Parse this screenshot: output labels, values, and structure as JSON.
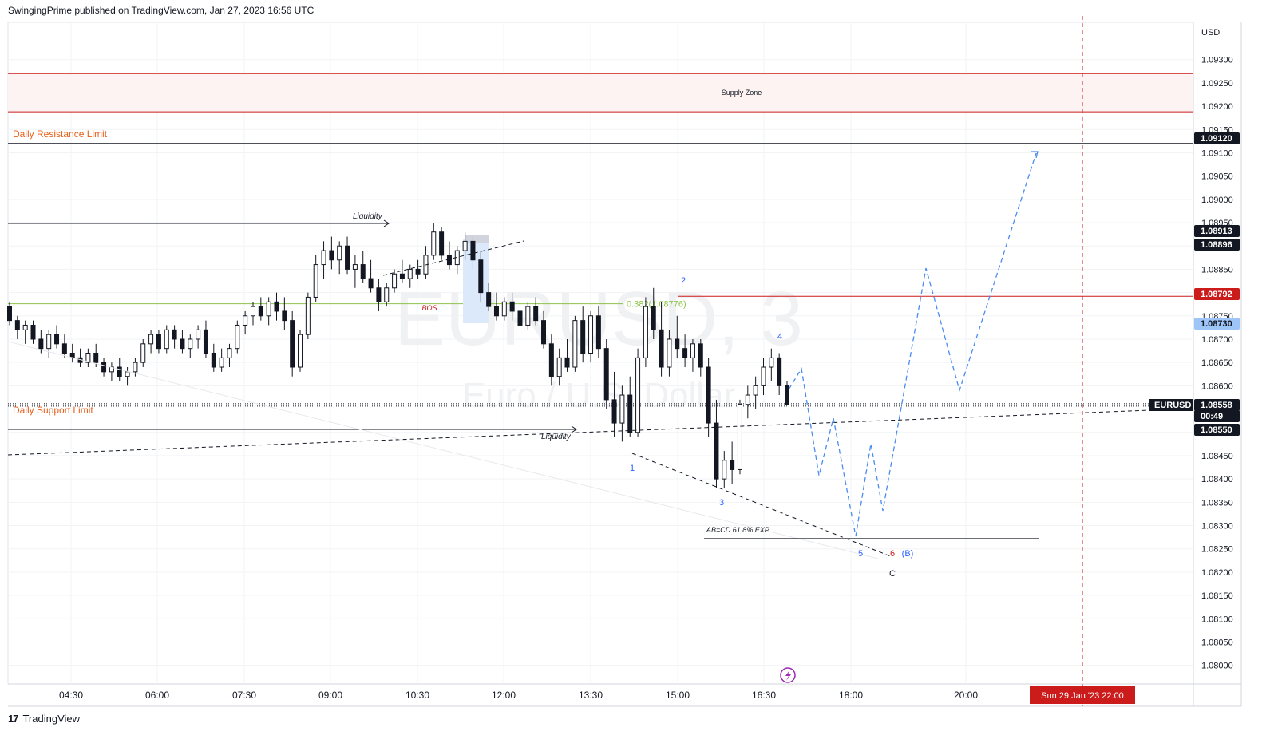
{
  "header": {
    "published": "SwingingPrime published on TradingView.com, Jan 27, 2023 16:56 UTC"
  },
  "footer": {
    "logo": "17",
    "brand": "TradingView"
  },
  "watermark": {
    "symbol": "EURUSD, 3",
    "name": "Euro / U.S. Dollar"
  },
  "colors": {
    "resistance": "#cc1b1b",
    "support_label": "#e8601c",
    "fib": "#8bc34a",
    "projection": "#4a8cf0",
    "candle": "#131722",
    "bos": "#cc1b1b",
    "price_tag": "#131722",
    "blue_tag": "#9ec5f8"
  },
  "chart_data": {
    "type": "candlestick",
    "symbol": "EURUSD",
    "currency": "USD",
    "ylim": [
      1.0796,
      1.0938
    ],
    "y_ticks": [
      "1.09300",
      "1.09250",
      "1.09200",
      "1.09150",
      "1.09100",
      "1.09050",
      "1.09000",
      "1.08950",
      "1.08900",
      "1.08850",
      "1.08800",
      "1.08750",
      "1.08700",
      "1.08650",
      "1.08600",
      "1.08550",
      "1.08500",
      "1.08450",
      "1.08400",
      "1.08350",
      "1.08300",
      "1.08250",
      "1.08200",
      "1.08150",
      "1.08100",
      "1.08050",
      "1.08000"
    ],
    "x_ticks": [
      "04:30",
      "06:00",
      "07:30",
      "09:00",
      "10:30",
      "12:00",
      "13:30",
      "15:00",
      "16:30",
      "18:00",
      "20:00"
    ],
    "price_tags": [
      {
        "value": "1.09120",
        "style": "dark"
      },
      {
        "value": "1.08913",
        "style": "dark"
      },
      {
        "value": "1.08896",
        "style": "dark"
      },
      {
        "value": "1.08792",
        "style": "red"
      },
      {
        "value": "1.08730",
        "style": "blue"
      },
      {
        "value": "1.08558",
        "style": "dark"
      },
      {
        "value": "00:49",
        "style": "dark"
      },
      {
        "value": "1.08550",
        "style": "dark"
      }
    ],
    "symbol_tag": "EURUSD",
    "date_tag": "Sun 29 Jan '23   22:00",
    "supply_zone": {
      "label": "Supply Zone",
      "top": 1.0927,
      "bottom": 1.09188
    },
    "levels": [
      {
        "label": "Daily Resistance Limit",
        "value": 1.0912
      },
      {
        "label": "Daily Support Limit",
        "value": 1.08558
      },
      {
        "label": "",
        "value": 1.08792
      }
    ],
    "fib": {
      "label": "0.382(1.08776)",
      "value": 1.08776
    },
    "bos_label": "BOS",
    "liquidity_labels": [
      "Liquidity",
      "Liquidity"
    ],
    "abcd": {
      "label": "AB=CD 61.8% EXP",
      "value": 1.08272
    },
    "wave_labels": [
      "1",
      "2",
      "3",
      "4",
      "5",
      "6",
      "(B)",
      "C"
    ],
    "ohlc": [
      [
        1.0877,
        1.0878,
        1.0873,
        1.0874
      ],
      [
        1.0874,
        1.0875,
        1.087,
        1.0872
      ],
      [
        1.0872,
        1.0874,
        1.0869,
        1.0873
      ],
      [
        1.0873,
        1.0874,
        1.0869,
        1.087
      ],
      [
        1.087,
        1.0872,
        1.0867,
        1.0868
      ],
      [
        1.0868,
        1.0872,
        1.0866,
        1.0871
      ],
      [
        1.0871,
        1.0873,
        1.0868,
        1.0869
      ],
      [
        1.0869,
        1.0871,
        1.0866,
        1.0867
      ],
      [
        1.0867,
        1.0869,
        1.0865,
        1.0866
      ],
      [
        1.0866,
        1.0868,
        1.0864,
        1.0865
      ],
      [
        1.0865,
        1.0868,
        1.0864,
        1.0867
      ],
      [
        1.0867,
        1.0869,
        1.0864,
        1.0865
      ],
      [
        1.0865,
        1.0866,
        1.0862,
        1.0863
      ],
      [
        1.0863,
        1.0865,
        1.0861,
        1.0864
      ],
      [
        1.0864,
        1.0866,
        1.0861,
        1.0862
      ],
      [
        1.0862,
        1.0864,
        1.086,
        1.0863
      ],
      [
        1.0863,
        1.0866,
        1.0862,
        1.0865
      ],
      [
        1.0865,
        1.087,
        1.0864,
        1.0869
      ],
      [
        1.0869,
        1.0872,
        1.0867,
        1.0871
      ],
      [
        1.0871,
        1.0872,
        1.0867,
        1.0868
      ],
      [
        1.0868,
        1.0873,
        1.0867,
        1.0872
      ],
      [
        1.0872,
        1.0873,
        1.0868,
        1.087
      ],
      [
        1.087,
        1.0872,
        1.0867,
        1.0868
      ],
      [
        1.0868,
        1.0871,
        1.0866,
        1.087
      ],
      [
        1.087,
        1.0873,
        1.0868,
        1.0872
      ],
      [
        1.0872,
        1.0874,
        1.0866,
        1.0867
      ],
      [
        1.0867,
        1.0869,
        1.0863,
        1.0864
      ],
      [
        1.0864,
        1.0868,
        1.0863,
        1.0866
      ],
      [
        1.0866,
        1.0869,
        1.0864,
        1.0868
      ],
      [
        1.0868,
        1.0874,
        1.0867,
        1.0873
      ],
      [
        1.0873,
        1.0876,
        1.0871,
        1.0875
      ],
      [
        1.0875,
        1.0878,
        1.0873,
        1.0877
      ],
      [
        1.0877,
        1.0879,
        1.0874,
        1.0875
      ],
      [
        1.0875,
        1.0879,
        1.0873,
        1.0878
      ],
      [
        1.0878,
        1.088,
        1.0874,
        1.0876
      ],
      [
        1.0876,
        1.0879,
        1.0872,
        1.0874
      ],
      [
        1.0874,
        1.0876,
        1.0862,
        1.0864
      ],
      [
        1.0864,
        1.0872,
        1.0863,
        1.0871
      ],
      [
        1.0871,
        1.088,
        1.087,
        1.0879
      ],
      [
        1.0879,
        1.0888,
        1.0878,
        1.0886
      ],
      [
        1.0886,
        1.0891,
        1.0883,
        1.0889
      ],
      [
        1.0889,
        1.0892,
        1.0885,
        1.0887
      ],
      [
        1.0887,
        1.0891,
        1.0884,
        1.089
      ],
      [
        1.089,
        1.0892,
        1.0884,
        1.0885
      ],
      [
        1.0885,
        1.0888,
        1.0881,
        1.0886
      ],
      [
        1.0886,
        1.0889,
        1.0882,
        1.0883
      ],
      [
        1.0883,
        1.0887,
        1.088,
        1.0881
      ],
      [
        1.0881,
        1.0883,
        1.0876,
        1.0878
      ],
      [
        1.0878,
        1.0882,
        1.0877,
        1.0881
      ],
      [
        1.0881,
        1.0885,
        1.088,
        1.0884
      ],
      [
        1.0884,
        1.0887,
        1.0882,
        1.0883
      ],
      [
        1.0883,
        1.0886,
        1.0881,
        1.0885
      ],
      [
        1.0885,
        1.0887,
        1.0883,
        1.0884
      ],
      [
        1.0884,
        1.089,
        1.0883,
        1.0888
      ],
      [
        1.0888,
        1.0895,
        1.0887,
        1.0893
      ],
      [
        1.0893,
        1.0894,
        1.0887,
        1.0888
      ],
      [
        1.0888,
        1.0891,
        1.0885,
        1.0886
      ],
      [
        1.0886,
        1.089,
        1.0884,
        1.0889
      ],
      [
        1.0889,
        1.0893,
        1.0887,
        1.0891
      ],
      [
        1.0891,
        1.0892,
        1.0885,
        1.0887
      ],
      [
        1.0887,
        1.0889,
        1.0878,
        1.088
      ],
      [
        1.088,
        1.0882,
        1.0876,
        1.0877
      ],
      [
        1.0877,
        1.088,
        1.0874,
        1.0875
      ],
      [
        1.0875,
        1.0879,
        1.0874,
        1.0878
      ],
      [
        1.0878,
        1.088,
        1.0874,
        1.0876
      ],
      [
        1.0876,
        1.0877,
        1.0872,
        1.0873
      ],
      [
        1.0873,
        1.0878,
        1.0872,
        1.0877
      ],
      [
        1.0877,
        1.0879,
        1.0873,
        1.0874
      ],
      [
        1.0874,
        1.0876,
        1.0868,
        1.0869
      ],
      [
        1.0869,
        1.0871,
        1.086,
        1.0862
      ],
      [
        1.0862,
        1.0868,
        1.086,
        1.0866
      ],
      [
        1.0866,
        1.087,
        1.0863,
        1.0864
      ],
      [
        1.0864,
        1.0875,
        1.0863,
        1.0874
      ],
      [
        1.0874,
        1.0877,
        1.0865,
        1.0867
      ],
      [
        1.0867,
        1.0876,
        1.0865,
        1.0875
      ],
      [
        1.0875,
        1.0877,
        1.0866,
        1.0868
      ],
      [
        1.0868,
        1.087,
        1.0855,
        1.0857
      ],
      [
        1.0857,
        1.0863,
        1.0849,
        1.0852
      ],
      [
        1.0852,
        1.086,
        1.0848,
        1.0858
      ],
      [
        1.0858,
        1.0862,
        1.0849,
        1.085
      ],
      [
        1.085,
        1.0868,
        1.0849,
        1.0866
      ],
      [
        1.0866,
        1.0879,
        1.0864,
        1.0877
      ],
      [
        1.0877,
        1.0881,
        1.087,
        1.0872
      ],
      [
        1.0872,
        1.0878,
        1.0862,
        1.0864
      ],
      [
        1.0864,
        1.0872,
        1.0862,
        1.087
      ],
      [
        1.087,
        1.0875,
        1.0866,
        1.0868
      ],
      [
        1.0868,
        1.0871,
        1.0864,
        1.0866
      ],
      [
        1.0866,
        1.087,
        1.0863,
        1.0869
      ],
      [
        1.0869,
        1.087,
        1.0862,
        1.0864
      ],
      [
        1.0864,
        1.0866,
        1.0849,
        1.0852
      ],
      [
        1.0852,
        1.0857,
        1.0838,
        1.084
      ],
      [
        1.084,
        1.0846,
        1.0838,
        1.0844
      ],
      [
        1.0844,
        1.0848,
        1.0839,
        1.0842
      ],
      [
        1.0842,
        1.0857,
        1.0841,
        1.0856
      ],
      [
        1.0856,
        1.086,
        1.0853,
        1.0858
      ],
      [
        1.0858,
        1.0862,
        1.0855,
        1.086
      ],
      [
        1.086,
        1.0866,
        1.0858,
        1.0864
      ],
      [
        1.0864,
        1.0868,
        1.0861,
        1.0866
      ],
      [
        1.0866,
        1.0867,
        1.0858,
        1.086
      ],
      [
        1.086,
        1.0861,
        1.0856,
        1.0856
      ]
    ]
  }
}
